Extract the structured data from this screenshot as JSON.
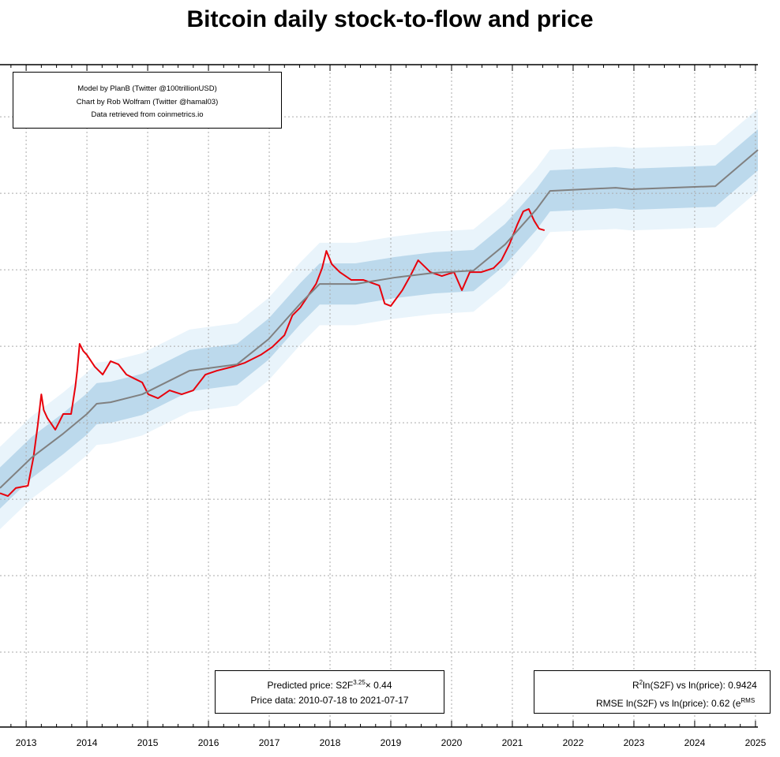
{
  "chart_data": {
    "type": "line",
    "title": "Bitcoin daily stock-to-flow and price",
    "xlabel": "",
    "ylabel": "",
    "x_scale": "time (years)",
    "y_scale": "log",
    "xlim": [
      2012.57,
      2025.04
    ],
    "ylim": [
      0.0105,
      4800000
    ],
    "grid": true,
    "x_tick_labels": [
      "2013",
      "2014",
      "2015",
      "2016",
      "2017",
      "2018",
      "2019",
      "2020",
      "2021",
      "2022",
      "2023",
      "2024",
      "2025"
    ],
    "y_gridlines": [
      0.1,
      1,
      10,
      100,
      1000,
      10000,
      100000,
      1000000
    ],
    "series": [
      {
        "key": "price",
        "color": "#e8000b",
        "x": [
          2012.57,
          2012.7,
          2012.83,
          2013.03,
          2013.12,
          2013.19,
          2013.25,
          2013.29,
          2013.35,
          2013.48,
          2013.61,
          2013.74,
          2013.81,
          2013.84,
          2013.88,
          2013.94,
          2014.0,
          2014.13,
          2014.26,
          2014.39,
          2014.52,
          2014.65,
          2014.78,
          2014.91,
          2015.01,
          2015.17,
          2015.36,
          2015.56,
          2015.75,
          2015.95,
          2016.14,
          2016.4,
          2016.6,
          2016.86,
          2017.05,
          2017.25,
          2017.38,
          2017.51,
          2017.64,
          2017.77,
          2017.87,
          2017.94,
          2018.03,
          2018.16,
          2018.35,
          2018.55,
          2018.81,
          2018.9,
          2019.0,
          2019.19,
          2019.32,
          2019.45,
          2019.65,
          2019.84,
          2020.04,
          2020.17,
          2020.3,
          2020.49,
          2020.69,
          2020.82,
          2020.95,
          2021.08,
          2021.18,
          2021.27,
          2021.36,
          2021.44,
          2021.53
        ],
        "y": [
          12,
          11,
          14,
          15,
          35,
          91,
          235,
          146,
          115,
          81,
          130,
          130,
          298,
          479,
          1074,
          867,
          771,
          540,
          426,
          637,
          579,
          426,
          378,
          336,
          235,
          209,
          265,
          235,
          265,
          426,
          479,
          540,
          608,
          771,
          977,
          1393,
          2523,
          3199,
          4571,
          6520,
          10490,
          17660,
          11800,
          9310,
          7350,
          7350,
          6220,
          3600,
          3360,
          5400,
          8280,
          13300,
          9310,
          8280,
          9310,
          5400,
          9310,
          9310,
          10490,
          13300,
          21380,
          38700,
          57900,
          62200,
          43600,
          34400,
          32800
        ]
      },
      {
        "key": "model",
        "color": "#808080",
        "x": [
          2012.57,
          2013.09,
          2013.61,
          2014.0,
          2014.16,
          2014.39,
          2014.91,
          2015.69,
          2016.47,
          2016.99,
          2017.51,
          2017.83,
          2018.42,
          2019.06,
          2019.71,
          2020.36,
          2020.88,
          2021.4,
          2021.62,
          2022.7,
          2022.96,
          2024.34,
          2025.04
        ],
        "y": [
          14,
          35,
          72,
          130,
          177,
          185,
          235,
          479,
          579,
          1240,
          3600,
          6520,
          6520,
          7890,
          9100,
          9760,
          21380,
          62200,
          107400,
          118000,
          112700,
          123800,
          369000
        ]
      }
    ],
    "bands": {
      "rmse_ln": 0.62,
      "inner_color": "#bcd9ec",
      "outer_color": "#e9f4fb"
    },
    "annotations": {
      "credits": [
        "Model by PlanB (Twitter @100trillionUSD)",
        "Chart by Rob Wolfram (Twitter @hamal03)",
        "Data retrieved from coinmetrics.io"
      ],
      "model_prefix": "Predicted price: S2F",
      "model_exponent": "3.25",
      "model_suffix": "× 0.44",
      "price_range": "Price data: 2010-07-18 to 2021-07-17",
      "r2_sup": "2",
      "r2_text": "ln(S2F) vs ln(price): 0.9424",
      "rmse_text": "RMSE ln(S2F) vs ln(price): 0.62 (e",
      "rmse_sup": "RMS"
    }
  }
}
